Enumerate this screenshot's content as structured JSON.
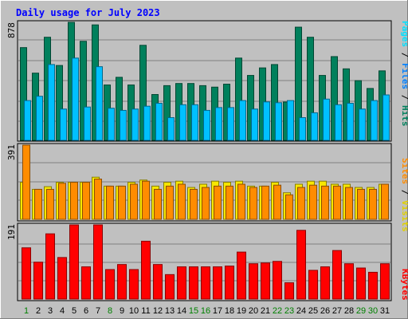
{
  "chart_data": [
    {
      "type": "bar",
      "title": "Daily usage for July 2023",
      "max_label": "878",
      "right_labels": [
        "Pages",
        "Files",
        "Hits"
      ],
      "categories": [
        "1",
        "2",
        "3",
        "4",
        "5",
        "6",
        "7",
        "8",
        "9",
        "10",
        "11",
        "12",
        "13",
        "14",
        "15",
        "16",
        "17",
        "18",
        "19",
        "20",
        "21",
        "22",
        "23",
        "24",
        "25",
        "26",
        "27",
        "28",
        "29",
        "30",
        "31"
      ],
      "weekend_days": [
        "1",
        "8",
        "15",
        "16",
        "22",
        "23",
        "29",
        "30"
      ],
      "ylim": [
        0,
        878
      ],
      "series": [
        {
          "name": "Hits",
          "values": [
            690,
            500,
            767,
            557,
            878,
            737,
            859,
            412,
            469,
            412,
            707,
            341,
            407,
            423,
            423,
            407,
            396,
            418,
            612,
            483,
            539,
            564,
            285,
            842,
            767,
            483,
            623,
            532,
            444,
            386,
            517
          ]
        },
        {
          "name": "Files",
          "values": [
            296,
            328,
            564,
            233,
            612,
            248,
            548,
            239,
            223,
            233,
            254,
            276,
            169,
            265,
            265,
            223,
            244,
            244,
            296,
            233,
            286,
            280,
            296,
            169,
            205,
            307,
            265,
            276,
            233,
            296,
            338
          ]
        },
        {
          "name": "Pages",
          "values": [
            0,
            0,
            0,
            0,
            0,
            0,
            0,
            0,
            0,
            0,
            0,
            0,
            0,
            0,
            0,
            0,
            0,
            0,
            0,
            0,
            0,
            0,
            0,
            0,
            0,
            0,
            0,
            0,
            0,
            0,
            0
          ]
        }
      ],
      "colors": {
        "Hits": "#00805c",
        "Files": "#00c0ff",
        "Pages": "#00e0ff"
      }
    },
    {
      "type": "bar",
      "max_label": "391",
      "right_labels": [
        "Sites",
        "Visits"
      ],
      "ylim": [
        0,
        391
      ],
      "series": [
        {
          "name": "Visits",
          "values": [
            195,
            158,
            172,
            195,
            195,
            195,
            222,
            175,
            175,
            195,
            207,
            175,
            195,
            201,
            168,
            185,
            201,
            195,
            201,
            175,
            175,
            195,
            140,
            185,
            201,
            201,
            185,
            185,
            168,
            168,
            185
          ]
        },
        {
          "name": "Sites",
          "values": [
            391,
            158,
            158,
            190,
            195,
            195,
            212,
            175,
            175,
            185,
            201,
            158,
            175,
            185,
            158,
            168,
            175,
            175,
            185,
            168,
            175,
            180,
            129,
            168,
            180,
            175,
            175,
            168,
            158,
            158,
            185
          ]
        }
      ],
      "colors": {
        "Visits": "#f8e800",
        "Sites": "#ff8c00"
      }
    },
    {
      "type": "bar",
      "max_label": "191",
      "right_labels": [
        "KBytes"
      ],
      "ylim": [
        0,
        191
      ],
      "series": [
        {
          "name": "KBytes",
          "values": [
            132,
            95,
            168,
            107,
            191,
            83,
            191,
            76,
            89,
            76,
            149,
            89,
            63,
            83,
            83,
            83,
            83,
            85,
            121,
            91,
            93,
            97,
            42,
            177,
            74,
            83,
            125,
            91,
            80,
            69,
            91
          ]
        }
      ],
      "colors": {
        "KBytes": "#ff0000"
      }
    }
  ]
}
